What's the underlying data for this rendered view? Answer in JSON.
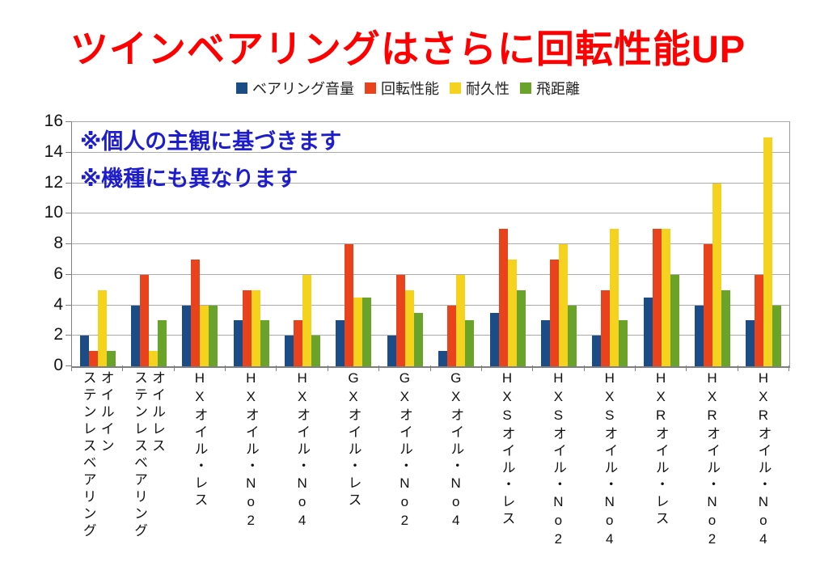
{
  "title": {
    "text": "ツインベアリングはさらに回転性能UP",
    "color": "#fe0000"
  },
  "annotations": {
    "line1": "※個人の主観に基づきます",
    "line2": "※機種にも異なります",
    "color": "#1d1dce"
  },
  "chart_data": {
    "type": "bar",
    "title": "ツインベアリングはさらに回転性能UP",
    "categories": [
      "オイルイン\nステンレスベアリング",
      "オイルレス\nステンレスベアリング",
      "HXオイル・レス",
      "HXオイル・No2",
      "HXオイル・No4",
      "GXオイル・レス",
      "GXオイル・No2",
      "GXオイル・No4",
      "HXSオイル・レス",
      "HXSオイル・No2",
      "HXSオイル・No4",
      "HXRオイル・レス",
      "HXRオイル・No2",
      "HXRオイル・No4"
    ],
    "series": [
      {
        "name": "ベアリング音量",
        "color": "#1c4c86",
        "values": [
          2,
          4,
          4,
          3,
          2,
          3,
          2,
          1,
          3.5,
          3,
          2,
          4.5,
          4,
          3
        ]
      },
      {
        "name": "回転性能",
        "color": "#e8431c",
        "values": [
          1,
          6,
          7,
          5,
          3,
          8,
          6,
          4,
          9,
          7,
          5,
          9,
          8,
          6
        ]
      },
      {
        "name": "耐久性",
        "color": "#f5d21d",
        "values": [
          5,
          1,
          4,
          5,
          6,
          4.5,
          5,
          6,
          7,
          8,
          9,
          9,
          12,
          15
        ]
      },
      {
        "name": "飛距離",
        "color": "#6aa32a",
        "values": [
          1,
          3,
          4,
          3,
          2,
          4.5,
          3.5,
          3,
          5,
          4,
          3,
          6,
          5,
          4
        ]
      }
    ],
    "xlabel": "",
    "ylabel": "",
    "ylim": [
      0,
      16
    ],
    "ytick_step": 2,
    "yticks": [
      0,
      2,
      4,
      6,
      8,
      10,
      12,
      14,
      16
    ],
    "grid": true,
    "legend_position": "top",
    "grid_color": "#ababab",
    "axis_color": "#7f7f7f"
  }
}
